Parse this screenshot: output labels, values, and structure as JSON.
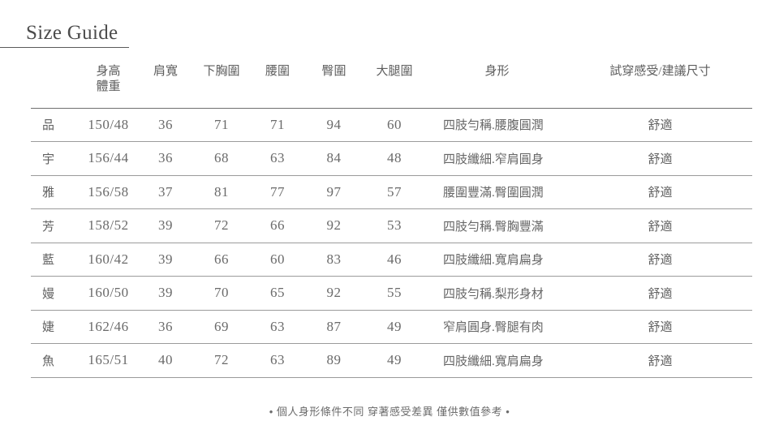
{
  "page": {
    "title": "Size Guide",
    "footer": "• 個人身形條件不同 穿著感受差異 僅供數值參考 •"
  },
  "table": {
    "headers": [
      "",
      "身高\n體重",
      "肩寬",
      "下胸圍",
      "腰圍",
      "臀圍",
      "大腿圍",
      "身形",
      "試穿感受/建議尺寸"
    ],
    "rows": [
      [
        "品",
        "150/48",
        "36",
        "71",
        "71",
        "94",
        "60",
        "四肢勻稱.腰腹圓潤",
        "舒適"
      ],
      [
        "宇",
        "156/44",
        "36",
        "68",
        "63",
        "84",
        "48",
        "四肢纖細.窄肩圓身",
        "舒適"
      ],
      [
        "雅",
        "156/58",
        "37",
        "81",
        "77",
        "97",
        "57",
        "腰圍豐滿.臀圍圓潤",
        "舒適"
      ],
      [
        "芳",
        "158/52",
        "39",
        "72",
        "66",
        "92",
        "53",
        "四肢勻稱.臀胸豐滿",
        "舒適"
      ],
      [
        "藍",
        "160/42",
        "39",
        "66",
        "60",
        "83",
        "46",
        "四肢纖細.寬肩扁身",
        "舒適"
      ],
      [
        "嫚",
        "160/50",
        "39",
        "70",
        "65",
        "92",
        "55",
        "四肢勻稱.梨形身材",
        "舒適"
      ],
      [
        "婕",
        "162/46",
        "36",
        "69",
        "63",
        "87",
        "49",
        "窄肩圓身.臀腿有肉",
        "舒適"
      ],
      [
        "魚",
        "165/51",
        "40",
        "72",
        "63",
        "89",
        "49",
        "四肢纖細.寬肩扁身",
        "舒適"
      ]
    ]
  },
  "colors": {
    "background": "#ffffff",
    "title_text": "#4c4c4c",
    "body_text": "#616161",
    "header_rule": "#6f6f6f",
    "row_rule": "#9b9b9b"
  }
}
